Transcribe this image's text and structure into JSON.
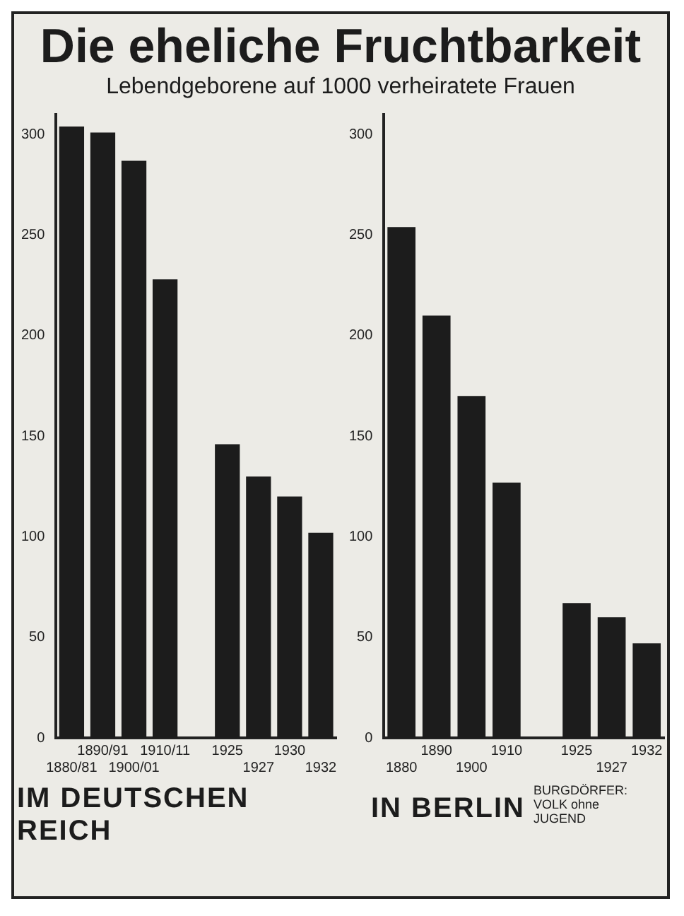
{
  "chart_data": [
    {
      "type": "bar",
      "title": "Die eheliche Fruchtbarkeit",
      "subtitle": "Lebendgeborene auf 1000 verheiratete Frauen",
      "xlabel": "IM DEUTSCHEN REICH",
      "categories": [
        "1880/81",
        "1890/91",
        "1900/01",
        "1910/11",
        null,
        "1925",
        "1927",
        "1930",
        "1932"
      ],
      "values": [
        304,
        301,
        287,
        228,
        null,
        146,
        130,
        120,
        102
      ],
      "color": "#1c1c1c",
      "ylim": [
        0,
        310
      ],
      "yticks": [
        0,
        50,
        100,
        150,
        200,
        250,
        300
      ],
      "grid": false,
      "legend": false
    },
    {
      "type": "bar",
      "xlabel": "IN BERLIN",
      "categories": [
        "1880",
        "1890",
        "1900",
        "1910",
        null,
        "1925",
        "1927",
        "1932"
      ],
      "values": [
        254,
        210,
        170,
        127,
        null,
        67,
        60,
        47
      ],
      "color": "#1c1c1c",
      "ylim": [
        0,
        310
      ],
      "yticks": [
        0,
        50,
        100,
        150,
        200,
        250,
        300
      ],
      "grid": false,
      "legend": false,
      "annotations": [
        "BURGDÖRFER: VOLK ohne JUGEND"
      ]
    }
  ]
}
